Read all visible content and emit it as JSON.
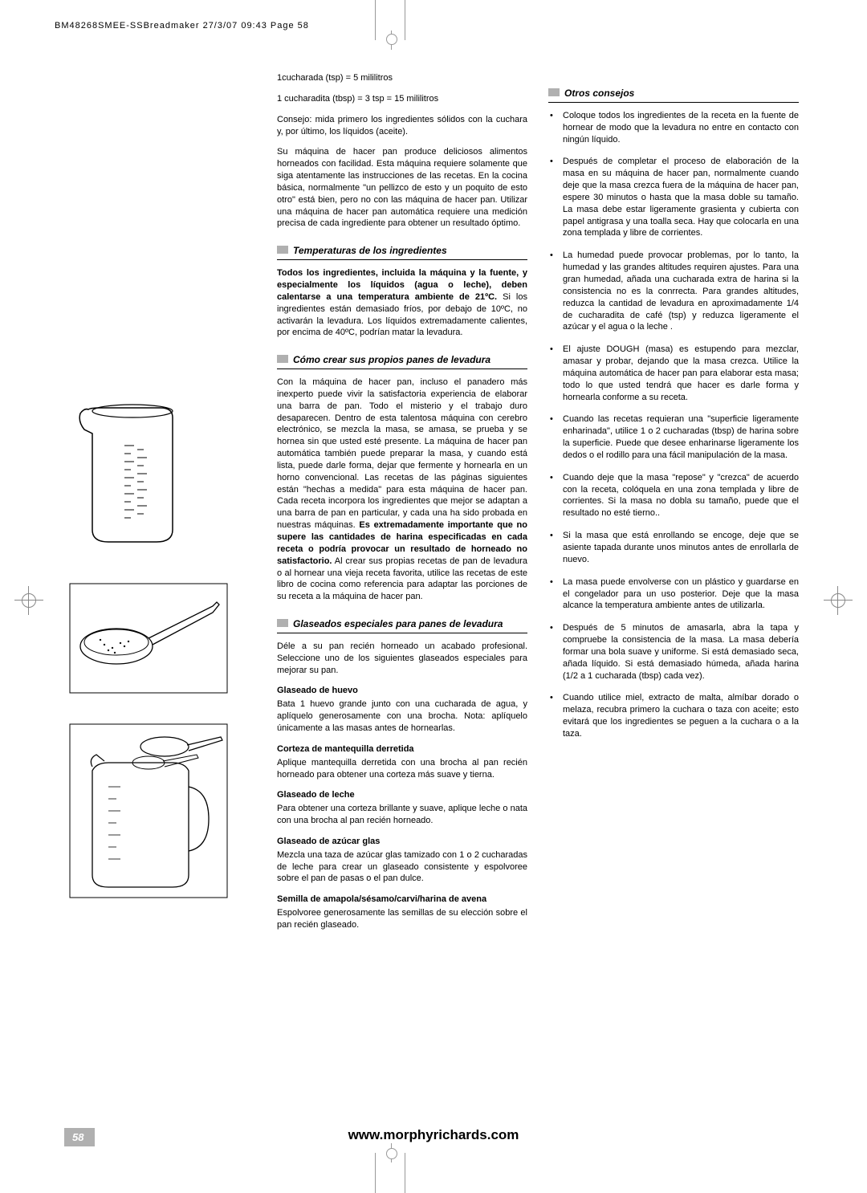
{
  "header": "BM48268SMEE-SSBreadmaker  27/3/07  09:43  Page 58",
  "intro": {
    "l1": "1cucharada (tsp) = 5 mililitros",
    "l2": "1 cucharadita (tbsp) = 3 tsp = 15 mililitros",
    "p1": "Consejo: mida primero los ingredientes sólidos con la cuchara y, por último, los líquidos (aceite).",
    "p2": "Su máquina de hacer pan produce deliciosos alimentos horneados con facilidad. Esta máquina requiere solamente que siga atentamente las instrucciones de las recetas. En la cocina básica, normalmente \"un pellizco de esto y un poquito de esto otro\" está bien, pero no con las máquina de hacer pan. Utilizar una máquina de hacer pan automática requiere una medición precisa de cada ingrediente para obtener un resultado óptimo."
  },
  "s1": {
    "title": "Temperaturas de los ingredientes",
    "b1": "Todos los ingredientes, incluida la máquina y la fuente, y especialmente los líquidos (agua o leche), deben calentarse a una temperatura ambiente de 21ºC.",
    "p1": " Si los ingredientes están demasiado fríos, por debajo de 10ºC, no activarán la levadura. Los líquidos extremadamente calientes, por encima de 40ºC, podrían matar la levadura."
  },
  "s2": {
    "title": "Cómo crear sus propios panes de levadura",
    "p1a": "Con la máquina de hacer pan, incluso el panadero más inexperto puede vivir la satisfactoria experiencia de elaborar una barra de pan. Todo el misterio y el trabajo duro desaparecen. Dentro de esta talentosa máquina con cerebro electrónico, se mezcla la masa, se amasa, se prueba y se hornea sin que usted esté presente. La máquina de hacer pan automática también puede preparar la masa, y cuando está lista, puede darle forma, dejar que fermente y hornearla en un horno convencional. Las recetas de las páginas siguientes están \"hechas a medida\" para esta máquina de hacer pan. Cada receta incorpora los ingredientes que mejor se adaptan a una barra de pan en particular, y cada una ha sido probada en nuestras máquinas. ",
    "p1b": "Es extremadamente importante que no supere las cantidades de harina especificadas en cada receta o podría provocar un resultado de horneado no satisfactorio.",
    "p1c": " Al crear sus propias recetas de pan de levadura o al hornear una vieja receta favorita, utilice las recetas de este libro de cocina como referencia para adaptar las porciones de su receta a la máquina de hacer pan."
  },
  "s3": {
    "title": "Glaseados especiales para panes de levadura",
    "p1": "Déle a su pan recién horneado un acabado profesional. Seleccione uno de los siguientes glaseados especiales para mejorar su pan.",
    "h1": "Glaseado de huevo",
    "t1": "Bata 1 huevo grande junto con una cucharada de agua, y aplíquelo generosamente con una brocha. Nota: aplíquelo únicamente a las masas antes de hornearlas.",
    "h2": "Corteza de mantequilla derretida",
    "t2": "Aplique mantequilla derretida con una brocha al pan recién horneado para obtener una corteza más suave y tierna.",
    "h3": "Glaseado de leche",
    "t3": "Para obtener una corteza brillante y suave, aplique leche o nata con una brocha al pan recién horneado.",
    "h4": "Glaseado de azúcar glas",
    "t4": "Mezcla una taza de azúcar glas tamizado con 1 o 2 cucharadas de leche para crear un glaseado consistente y espolvoree sobre el pan de pasas o el pan dulce.",
    "h5": "Semilla de amapola/sésamo/carvi/harina de avena",
    "t5": "Espolvoree generosamente las semillas de su elección sobre  el pan recién glaseado."
  },
  "s4": {
    "title": "Otros consejos",
    "tips": [
      "Coloque todos los ingredientes de la receta en la fuente de hornear de modo que la levadura no entre en contacto con ningún líquido.",
      "Después de completar el proceso de elaboración de la masa en su máquina de hacer pan, normalmente cuando deje que la masa crezca fuera de la máquina de hacer pan, espere 30 minutos o hasta que la masa doble su tamaño. La masa debe estar ligeramente grasienta y cubierta con papel antigrasa y una toalla seca. Hay que colocarla en una zona templada y libre de corrientes.",
      "La humedad puede provocar problemas, por lo tanto, la humedad y las grandes altitudes requiren ajustes. Para una gran humedad, añada una cucharada extra de harina si la consistencia no es la conrrecta. Para grandes altitudes, reduzca la cantidad de levadura en aproximadamente 1/4 de cucharadita de café (tsp) y reduzca ligeramente el azúcar y el agua o la leche .",
      "El ajuste DOUGH (masa) es estupendo para mezclar, amasar y probar, dejando que la masa crezca. Utilice la máquina automática de hacer pan para elaborar esta masa; todo lo que usted tendrá que hacer es darle forma y hornearla conforme a su receta.",
      "Cuando las recetas requieran una \"superficie ligeramente enharinada\", utilice 1 o 2 cucharadas (tbsp) de harina sobre la superficie. Puede que desee enharinarse ligeramente los dedos o el rodillo para una fácil manipulación de la masa.",
      "Cuando deje que la masa \"repose\" y \"crezca\" de acuerdo con la receta, colóquela en una zona templada y libre de corrientes. Si la masa no dobla su tamaño, puede que el resultado no esté tierno..",
      "Si la masa que está enrollando se encoge, deje que se asiente tapada durante unos minutos antes de enrollarla de nuevo.",
      "La masa puede envolverse con un plástico y guardarse en el congelador para un uso posterior. Deje que la masa alcance la temperatura ambiente antes de utilizarla.",
      "Después de 5 minutos de amasarla, abra la tapa y compruebe la consistencia de la masa. La masa debería formar una bola suave y uniforme. Si está demasiado seca, añada líquido. Si está demasiado húmeda, añada harina (1/2 a 1 cucharada (tbsp) cada vez).",
      "Cuando utilice miel, extracto de malta, almíbar dorado o melaza, recubra primero la cuchara o taza con aceite; esto evitará que los ingredientes se peguen a la cuchara o a la taza."
    ]
  },
  "footer": "www.morphyrichards.com",
  "pagenum": "58"
}
